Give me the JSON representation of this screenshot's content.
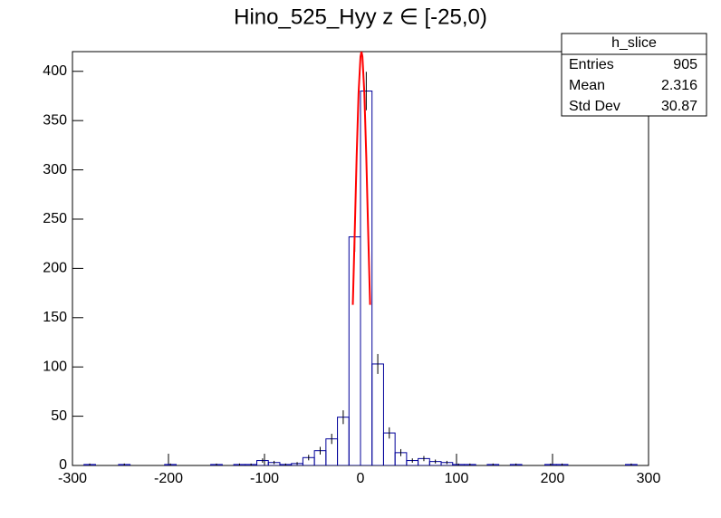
{
  "chart_data": {
    "type": "histogram",
    "title": "Hino_525_Hyy z  ∈ [-25,0)",
    "bins": [
      -300,
      -288,
      -276,
      -264,
      -252,
      -240,
      -228,
      -216,
      -204,
      -192,
      -180,
      -168,
      -156,
      -144,
      -132,
      -120,
      -108,
      -96,
      -84,
      -72,
      -60,
      -48,
      -36,
      -24,
      -12,
      0,
      12,
      24,
      36,
      48,
      60,
      72,
      84,
      96,
      108,
      120,
      132,
      144,
      156,
      168,
      180,
      192,
      204,
      216,
      228,
      240,
      252,
      264,
      276,
      288,
      300
    ],
    "values": [
      0,
      1,
      0,
      0,
      1,
      0,
      0,
      0,
      1,
      0,
      0,
      0,
      1,
      0,
      1,
      1,
      5,
      3,
      1,
      2,
      8,
      15,
      27,
      49,
      232,
      380,
      103,
      33,
      13,
      5,
      7,
      4,
      3,
      1,
      1,
      0,
      1,
      0,
      1,
      0,
      0,
      1,
      1,
      0,
      0,
      0,
      0,
      0,
      1,
      0
    ],
    "errors": [
      0,
      1,
      0,
      0,
      1,
      0,
      0,
      0,
      1,
      0,
      0,
      0,
      1,
      0,
      1,
      1,
      2.2,
      1.7,
      1,
      1.4,
      2.8,
      3.9,
      5.2,
      7,
      15.2,
      19.5,
      10.1,
      5.7,
      3.6,
      2.2,
      2.6,
      2,
      1.7,
      1,
      1,
      0,
      1,
      0,
      1,
      0,
      0,
      1,
      1,
      0,
      0,
      0,
      0,
      0,
      1,
      0
    ],
    "color": "#000099",
    "error_color": "#000000",
    "fit": {
      "color": "#ff0000",
      "x": [
        -8,
        -6,
        -4,
        -2,
        0,
        1,
        2,
        4,
        6,
        8,
        10
      ],
      "y": [
        163,
        237,
        314,
        378,
        415,
        420,
        415,
        378,
        314,
        237,
        163
      ]
    },
    "xlim": [
      -300,
      300
    ],
    "xticks": [
      -300,
      -200,
      -100,
      0,
      100,
      200,
      300
    ],
    "ylim": [
      0,
      420
    ],
    "yticks": [
      0,
      50,
      100,
      150,
      200,
      250,
      300,
      350,
      400
    ],
    "stats": {
      "title": "h_slice",
      "rows": [
        {
          "label": "Entries",
          "value": 905
        },
        {
          "label": "Mean",
          "value": 2.316
        },
        {
          "label": "Std Dev",
          "value": 30.87
        }
      ]
    }
  }
}
